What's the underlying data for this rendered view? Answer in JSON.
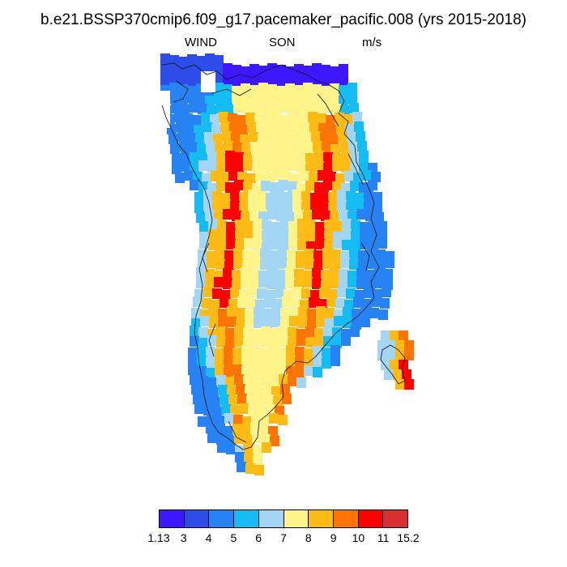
{
  "title": "b.e21.BSSP370cmip6.f09_g17.pacemaker_pacific.008 (yrs 2015-2018)",
  "subtitle": {
    "left": "WIND",
    "center": "SON",
    "right": "m/s"
  },
  "colorbar": {
    "colors": [
      "#3d17ff",
      "#2e4de8",
      "#2783f3",
      "#15bbf3",
      "#a3d6f5",
      "#fff48a",
      "#ffbb15",
      "#ff7505",
      "#ff0000",
      "#d63030"
    ],
    "labels": [
      "1.13",
      "3",
      "4",
      "5",
      "6",
      "7",
      "8",
      "9",
      "10",
      "11",
      "15.2"
    ]
  }
}
